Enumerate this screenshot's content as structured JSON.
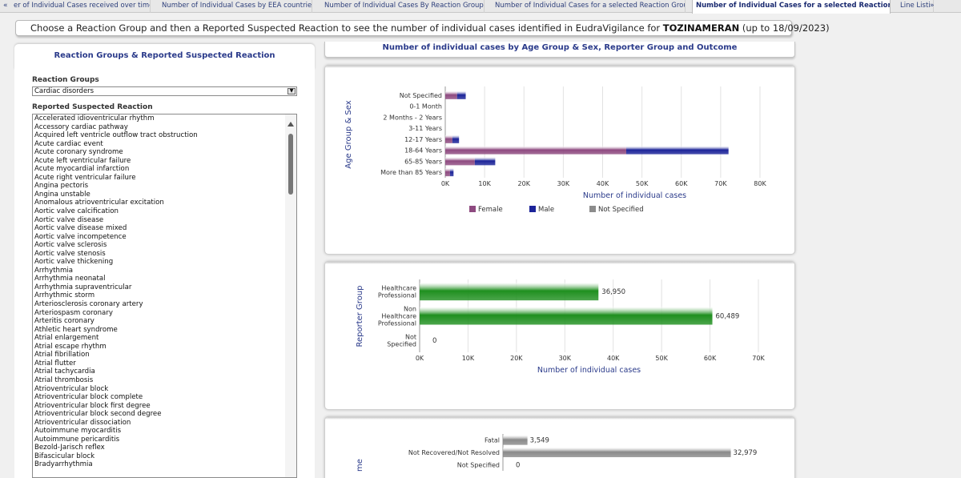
{
  "tabs": [
    {
      "label": "er of Individual Cases received over time",
      "active": false
    },
    {
      "label": "Number of Individual Cases by EEA countries",
      "active": false
    },
    {
      "label": "Number of Individual Cases By Reaction Groups",
      "active": false
    },
    {
      "label": "Number of Individual Cases for a selected Reaction Group",
      "active": false
    },
    {
      "label": "Number of Individual Cases for a selected Reaction",
      "active": true
    },
    {
      "label": "Line Listi",
      "active": false
    }
  ],
  "tab_nav": {
    "left": "«",
    "right": "»"
  },
  "header": {
    "text": "Choose a Reaction Group and then a Reported Suspected Reaction to see the number of individual cases identified in EudraVigilance for",
    "drug": "TOZINAMERAN",
    "date": "(up to 18/09/2023)"
  },
  "left": {
    "title": "Reaction Groups & Reported Suspected Reaction",
    "groups_label": "Reaction Groups",
    "group_selected": "Cardiac disorders",
    "reactions_label": "Reported Suspected Reaction",
    "reactions": [
      "Accelerated idioventricular rhythm",
      "Accessory cardiac pathway",
      "Acquired left ventricle outflow tract obstruction",
      "Acute cardiac event",
      "Acute coronary syndrome",
      "Acute left ventricular failure",
      "Acute myocardial infarction",
      "Acute right ventricular failure",
      "Angina pectoris",
      "Angina unstable",
      "Anomalous atrioventricular excitation",
      "Aortic valve calcification",
      "Aortic valve disease",
      "Aortic valve disease mixed",
      "Aortic valve incompetence",
      "Aortic valve sclerosis",
      "Aortic valve stenosis",
      "Aortic valve thickening",
      "Arrhythmia",
      "Arrhythmia neonatal",
      "Arrhythmia supraventricular",
      "Arrhythmic storm",
      "Arteriosclerosis coronary artery",
      "Arteriospasm coronary",
      "Arteritis coronary",
      "Athletic heart syndrome",
      "Atrial enlargement",
      "Atrial escape rhythm",
      "Atrial fibrillation",
      "Atrial flutter",
      "Atrial tachycardia",
      "Atrial thrombosis",
      "Atrioventricular block",
      "Atrioventricular block complete",
      "Atrioventricular block first degree",
      "Atrioventricular block second degree",
      "Atrioventricular dissociation",
      "Autoimmune myocarditis",
      "Autoimmune pericarditis",
      "Bezold-Jarisch reflex",
      "Bifascicular block",
      "Bradyarrhythmia"
    ]
  },
  "right_title": "Number of individual cases by Age Group & Sex, Reporter Group and Outcome",
  "colors": {
    "female": "#8e4a80",
    "male": "#1c2499",
    "not_specified": "#8c8c8c",
    "reporter": "#1f8f1f",
    "outcome": "#8a8a8a",
    "axis_text": "#2a3a8a"
  },
  "chart_data": [
    {
      "type": "bar",
      "orientation": "horizontal",
      "stacked": true,
      "ylabel": "Age Group & Sex",
      "xlabel": "Number of individual cases",
      "categories": [
        "Not Specified",
        "0-1 Month",
        "2 Months - 2 Years",
        "3-11 Years",
        "12-17 Years",
        "18-64 Years",
        "65-85 Years",
        "More than 85 Years"
      ],
      "series": [
        {
          "name": "Female",
          "values": [
            3000,
            0,
            0,
            0,
            1800,
            46000,
            7500,
            1200
          ]
        },
        {
          "name": "Male",
          "values": [
            2200,
            0,
            0,
            0,
            1700,
            26000,
            5200,
            900
          ]
        },
        {
          "name": "Not Specified",
          "values": [
            0,
            0,
            0,
            0,
            0,
            0,
            0,
            0
          ]
        }
      ],
      "xlim": [
        0,
        80000
      ],
      "xticks": [
        "0K",
        "10K",
        "20K",
        "30K",
        "40K",
        "50K",
        "60K",
        "70K",
        "80K"
      ],
      "legend": "bottom",
      "grid": true
    },
    {
      "type": "bar",
      "orientation": "horizontal",
      "ylabel": "Reporter Group",
      "xlabel": "Number of individual cases",
      "categories": [
        "Healthcare Professional",
        "Non Healthcare Professional",
        "Not Specified"
      ],
      "values": [
        36950,
        60489,
        0
      ],
      "data_labels": [
        "36,950",
        "60,489",
        "0"
      ],
      "xlim": [
        0,
        70000
      ],
      "xticks": [
        "0K",
        "10K",
        "20K",
        "30K",
        "40K",
        "50K",
        "60K",
        "70K"
      ]
    },
    {
      "type": "bar",
      "orientation": "horizontal",
      "ylabel": "me",
      "categories": [
        "Fatal",
        "Not Recovered/Not Resolved",
        "Not Specified"
      ],
      "values": [
        3549,
        32979,
        0
      ],
      "data_labels": [
        "3,549",
        "32,979",
        "0"
      ],
      "xlim": [
        0,
        35000
      ]
    }
  ]
}
